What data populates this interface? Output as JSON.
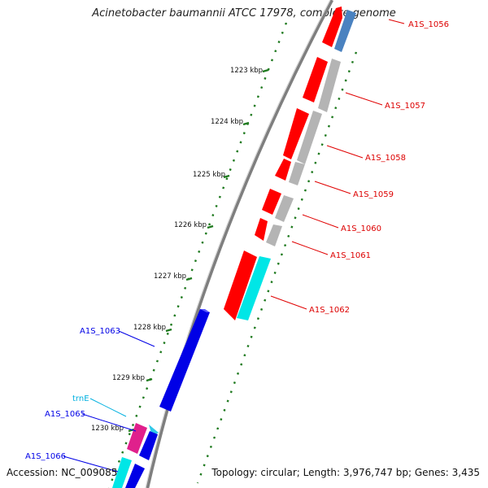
{
  "title": "Acinetobacter baumannii ATCC 17978, complete genome",
  "footer": {
    "accession": "Accession: NC_009085",
    "topology": "Topology: circular; Length: 3,976,747 bp; Genes: 3,435"
  },
  "colors": {
    "red": "#ff0000",
    "grey": "#b4b4b4",
    "steelblue": "#4a82c0",
    "cyan": "#00e6e6",
    "blue": "#0000e6",
    "magenta": "#e0208c",
    "lightcyan": "#30c8e8",
    "backbone": "#909090",
    "tick": "#1f7a1f"
  },
  "ticks": [
    "1223 kbp",
    "1224 kbp",
    "1225 kbp",
    "1226 kbp",
    "1227 kbp",
    "1228 kbp",
    "1229 kbp",
    "1230 kbp"
  ],
  "gene_labels_right": [
    "A1S_1056",
    "A1S_1057",
    "A1S_1058",
    "A1S_1059",
    "A1S_1060",
    "A1S_1061",
    "A1S_1062"
  ],
  "gene_labels_left": [
    "A1S_1063",
    "trnE",
    "A1S_1065",
    "A1S_1066"
  ]
}
